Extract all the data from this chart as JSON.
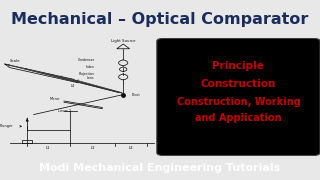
{
  "title": "Mechanical – Optical Comparator",
  "title_color": "#1a2c5b",
  "title_bg": "#7dc142",
  "footer": "Modi Mechanical Engineering Tutorials",
  "footer_bg": "#5b9bd5",
  "footer_color": "#ffffff",
  "right_box_bg": "#000000",
  "right_box_text": [
    "Principle",
    "Construction",
    "Construction, Working",
    "and Application"
  ],
  "right_box_text_color": "#cc0000",
  "main_bg": "#e8e8e8"
}
